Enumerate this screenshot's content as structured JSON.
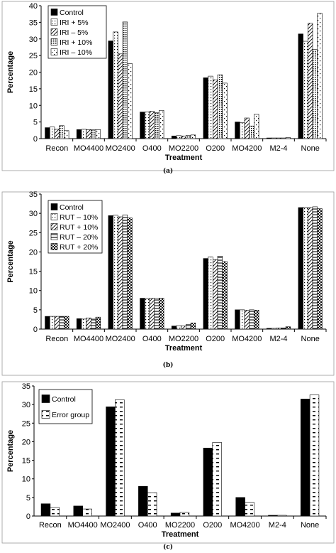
{
  "chart_data": [
    {
      "type": "bar",
      "caption": "(a)",
      "categories": [
        "Recon",
        "MO4400",
        "MO2400",
        "O400",
        "MO2200",
        "O200",
        "MO4200",
        "M2-4",
        "None"
      ],
      "xlabel": "Treatment",
      "ylabel": "Percentage",
      "ylim": [
        0,
        40
      ],
      "yticks": [
        0,
        5,
        10,
        15,
        20,
        25,
        30,
        35,
        40
      ],
      "grid": false,
      "legend_position": "top-left",
      "series": [
        {
          "name": "Control",
          "pattern": "solid",
          "values": [
            3.3,
            2.7,
            29.4,
            8.0,
            0.8,
            18.3,
            5.0,
            0.2,
            31.5
          ]
        },
        {
          "name": "IRI + 5%",
          "pattern": "dots",
          "values": [
            3.5,
            2.8,
            32.1,
            8.0,
            0.9,
            18.8,
            4.8,
            0.2,
            29.3
          ]
        },
        {
          "name": "IRI – 5%",
          "pattern": "diagonal",
          "values": [
            2.8,
            2.7,
            25.5,
            8.2,
            0.8,
            17.7,
            6.2,
            0.2,
            34.7
          ]
        },
        {
          "name": "IRI + 10%",
          "pattern": "dense",
          "values": [
            3.9,
            2.7,
            35.1,
            7.8,
            1.0,
            19.2,
            3.8,
            0.2,
            26.8
          ]
        },
        {
          "name": "IRI – 10%",
          "pattern": "sparse",
          "values": [
            2.4,
            2.7,
            22.6,
            8.5,
            1.1,
            16.7,
            7.3,
            0.3,
            37.7
          ]
        }
      ]
    },
    {
      "type": "bar",
      "caption": "(b)",
      "categories": [
        "Recon",
        "MO4400",
        "MO2400",
        "O400",
        "MO2200",
        "O200",
        "MO4200",
        "M2-4",
        "None"
      ],
      "xlabel": "Treatment",
      "ylabel": "Percentage",
      "ylim": [
        0,
        35
      ],
      "yticks": [
        0,
        5,
        10,
        15,
        20,
        25,
        30,
        35
      ],
      "grid": false,
      "legend_position": "top-left",
      "series": [
        {
          "name": "Control",
          "pattern": "solid",
          "values": [
            3.3,
            2.7,
            29.4,
            8.0,
            0.8,
            18.3,
            5.0,
            0.2,
            31.5
          ]
        },
        {
          "name": "RUT – 10%",
          "pattern": "dots",
          "values": [
            3.3,
            2.6,
            29.5,
            8.0,
            0.9,
            18.7,
            5.0,
            0.2,
            31.6
          ]
        },
        {
          "name": "RUT + 10%",
          "pattern": "diagonal",
          "values": [
            3.3,
            2.9,
            29.1,
            8.0,
            0.8,
            18.0,
            4.9,
            0.3,
            31.5
          ]
        },
        {
          "name": "RUT – 20%",
          "pattern": "horizontal",
          "values": [
            3.3,
            2.6,
            29.6,
            8.0,
            1.2,
            18.9,
            5.0,
            0.3,
            31.7
          ]
        },
        {
          "name": "RUT + 20%",
          "pattern": "checker",
          "values": [
            3.3,
            3.1,
            28.8,
            8.0,
            1.6,
            17.5,
            4.9,
            0.6,
            31.2
          ]
        }
      ]
    },
    {
      "type": "bar",
      "caption": "(c)",
      "categories": [
        "Recon",
        "MO4400",
        "MO2400",
        "O400",
        "MO2200",
        "O200",
        "MO4200",
        "M2-4",
        "None"
      ],
      "xlabel": "Treatment",
      "ylabel": "Percentage",
      "ylim": [
        0,
        35
      ],
      "yticks": [
        0,
        5,
        10,
        15,
        20,
        25,
        30,
        35
      ],
      "grid": false,
      "legend_position": "top-left",
      "series": [
        {
          "name": "Control",
          "pattern": "solid",
          "values": [
            3.3,
            2.7,
            29.4,
            8.0,
            0.8,
            18.3,
            5.0,
            0.2,
            31.5
          ]
        },
        {
          "name": "Error group",
          "pattern": "dashes",
          "values": [
            2.3,
            1.9,
            31.3,
            6.3,
            1.0,
            19.8,
            3.7,
            0.2,
            32.6
          ]
        }
      ]
    }
  ]
}
